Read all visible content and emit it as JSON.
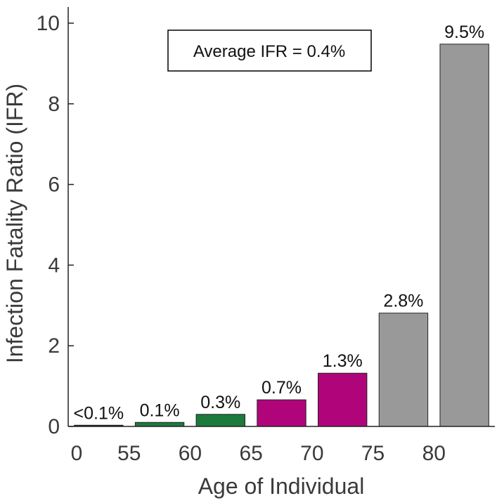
{
  "chart_data": {
    "type": "bar",
    "title": "",
    "xlabel": "Age of Individual",
    "ylabel": "Infection Fatality Ratio (IFR)",
    "ylim": [
      0,
      10.4
    ],
    "yticks": [
      0,
      2,
      4,
      6,
      8,
      10
    ],
    "x_tick_labels": [
      "0",
      "55",
      "60",
      "65",
      "70",
      "75",
      "80"
    ],
    "categories": [
      "0-55",
      "55-60",
      "60-65",
      "65-70",
      "70-75",
      "75-80",
      "80+"
    ],
    "values": [
      0.03,
      0.1,
      0.3,
      0.66,
      1.32,
      2.81,
      9.48
    ],
    "data_labels": [
      "<0.1%",
      "0.1%",
      "0.3%",
      "0.7%",
      "1.3%",
      "2.8%",
      "9.5%"
    ],
    "bar_colors": [
      "#1f1f1f",
      "#1c7a3c",
      "#1c7a3c",
      "#b0057a",
      "#b0057a",
      "#999999",
      "#999999"
    ],
    "annotation": "Average IFR = 0.4%",
    "grid": false,
    "legend": "none"
  }
}
